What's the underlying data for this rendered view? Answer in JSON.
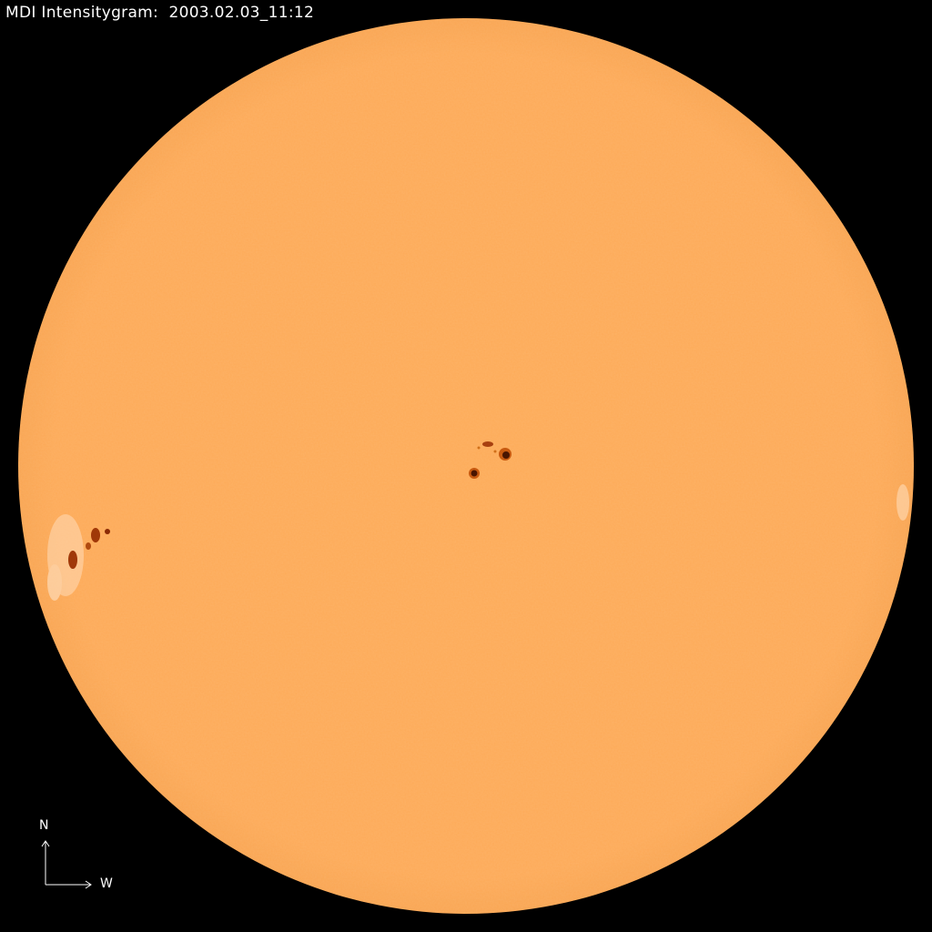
{
  "title": "MDI Intensitygram:  2003.02.03_11:12",
  "compass": {
    "north": "N",
    "west": "W"
  },
  "colors": {
    "background": "#000000",
    "disk": "#fdaa58",
    "sunspot_umbra": "#5a1a00",
    "sunspot_penumbra": "#c85a10",
    "facula": "#ffd8b0"
  }
}
